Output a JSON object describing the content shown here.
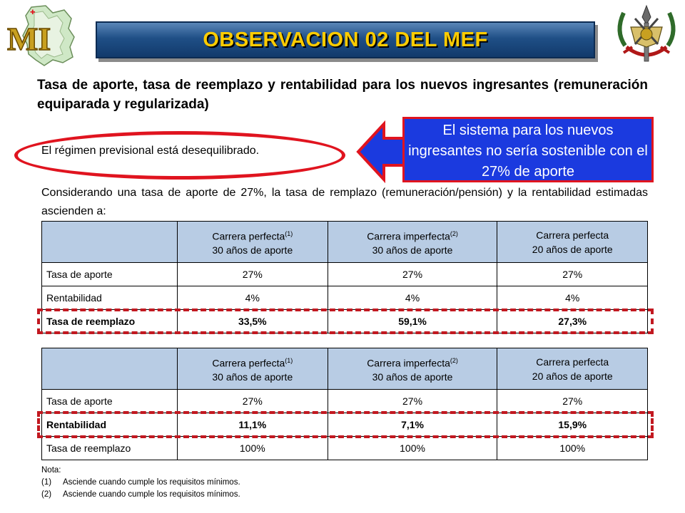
{
  "title": "OBSERVACION  02 DEL MEF",
  "subtitle": "Tasa de aporte, tasa de reemplazo y rentabilidad para los nuevos ingresantes (remuneración equiparada y regularizada)",
  "regimen": "El régimen previsional está desequilibrado.",
  "callout": "El sistema  para los nuevos ingresantes no sería sostenible con el 27% de aporte",
  "considering": "Considerando una tasa de aporte de 27%, la tasa de remplazo (remuneración/pensión)  y la rentabilidad estimadas ascienden a:",
  "columns": [
    {
      "line1": "Carrera perfecta",
      "sup": "(1)",
      "line2": "30 años de aporte"
    },
    {
      "line1": "Carrera imperfecta",
      "sup": "(2)",
      "line2": "30 años de aporte"
    },
    {
      "line1": "Carrera perfecta",
      "sup": "",
      "line2": "20 años de aporte"
    }
  ],
  "table1": {
    "rows": [
      {
        "label": "Tasa de aporte",
        "values": [
          "27%",
          "27%",
          "27%"
        ]
      },
      {
        "label": "Rentabilidad",
        "values": [
          "4%",
          "4%",
          "4%"
        ]
      },
      {
        "label": "Tasa de reemplazo",
        "values": [
          "33,5%",
          "59,1%",
          "27,3%"
        ]
      }
    ]
  },
  "table2": {
    "rows": [
      {
        "label": "Tasa de aporte",
        "values": [
          "27%",
          "27%",
          "27%"
        ]
      },
      {
        "label": "Rentabilidad",
        "values": [
          "11,1%",
          "7,1%",
          "15,9%"
        ]
      },
      {
        "label": "Tasa de reemplazo",
        "values": [
          "100%",
          "100%",
          "100%"
        ]
      }
    ]
  },
  "nota": {
    "heading": "Nota:",
    "items": [
      {
        "ref": "(1)",
        "text": "Asciende cuando cumple los requisitos mínimos."
      },
      {
        "ref": "(2)",
        "text": "Asciende cuando cumple los requisitos mínimos."
      }
    ]
  },
  "colors": {
    "banner": "#1f4f86",
    "title_text": "#ffcc00",
    "callout_bg": "#1b3adf",
    "highlight_red": "#e0141f",
    "header_cell": "#b8cce4"
  },
  "icons": {
    "left_logo": "mi-ministry-logo-icon",
    "right_logo": "military-emblem-icon",
    "arrow": "arrow-left-icon"
  }
}
